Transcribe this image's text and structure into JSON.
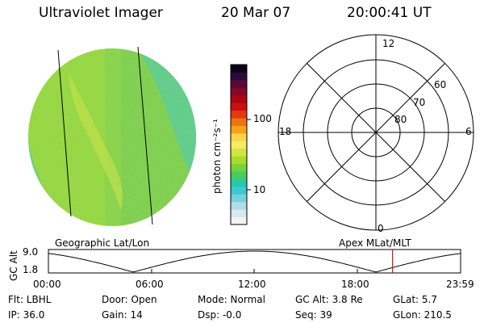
{
  "header": {
    "instrument": "Ultraviolet Imager",
    "date": "20 Mar 07",
    "time": "20:00:41 UT"
  },
  "colorbar": {
    "unit_label": "photon cm⁻²s⁻¹",
    "ticks": [
      "100",
      "10"
    ],
    "colors": [
      "#f4f4f4",
      "#d8e8ec",
      "#b0dce6",
      "#78d0dc",
      "#3ccad2",
      "#28c8aa",
      "#48cc60",
      "#7ad238",
      "#a6dc2c",
      "#d4e43c",
      "#f4ec64",
      "#fcd448",
      "#f4a418",
      "#ec7410",
      "#e43810",
      "#cc1010",
      "#a80818",
      "#840828",
      "#5a0a38",
      "#2a0a3a",
      "#0a0418"
    ]
  },
  "polar_plot": {
    "mlt_labels": {
      "top": "12",
      "left": "18",
      "right": "6",
      "bottom": "0"
    },
    "lat_labels": [
      "60",
      "70",
      "80"
    ]
  },
  "timeline": {
    "left_label": "Geographic Lat/Lon",
    "right_label": "Apex MLat/MLT",
    "axis_title": "GC Alt",
    "y_ticks": [
      "9.0",
      "1.8"
    ],
    "x_ticks": [
      "00:00",
      "06:00",
      "12:00",
      "18:00",
      "23:59"
    ],
    "marker_color": "#d01010",
    "current_time_fraction": 0.835
  },
  "info": {
    "filter": "Flt: LBHL",
    "door": "Door: Open",
    "mode": "Mode: Normal",
    "gc_alt": "GC Alt: 3.8 Re",
    "glat": "GLat:   5.7",
    "ip": "IP: 36.0",
    "gain": "Gain: 14",
    "dsp": "Dsp:   -0.0",
    "seq": "Seq: 39",
    "glon": "GLon: 210.5"
  }
}
